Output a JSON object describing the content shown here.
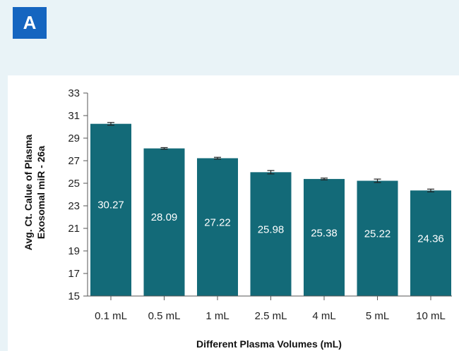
{
  "panel": {
    "label": "A"
  },
  "colors": {
    "bar": "#136a78",
    "badge": "#1565c0",
    "background": "#e9f3f7"
  },
  "chart_data": {
    "type": "bar",
    "categories": [
      "0.1 mL",
      "0.5 mL",
      "1 mL",
      "2.5 mL",
      "4 mL",
      "5 mL",
      "10 mL"
    ],
    "values": [
      30.27,
      28.09,
      27.22,
      25.98,
      25.38,
      25.22,
      24.36
    ],
    "errors": [
      0.12,
      0.07,
      0.08,
      0.15,
      0.08,
      0.15,
      0.12
    ],
    "data_labels": [
      "30.27",
      "28.09",
      "27.22",
      "25.98",
      "25.38",
      "25.22",
      "24.36"
    ],
    "ylim": [
      15,
      33
    ],
    "yticks": [
      15,
      17,
      19,
      21,
      23,
      25,
      27,
      29,
      31,
      33
    ],
    "xlabel": "Different Plasma Volumes (mL)",
    "ylabel_line1": "Avg. Ct. Calue of Plasma",
    "ylabel_line2": "Exosomal miR - 26a",
    "grid": false,
    "legend": "none"
  }
}
